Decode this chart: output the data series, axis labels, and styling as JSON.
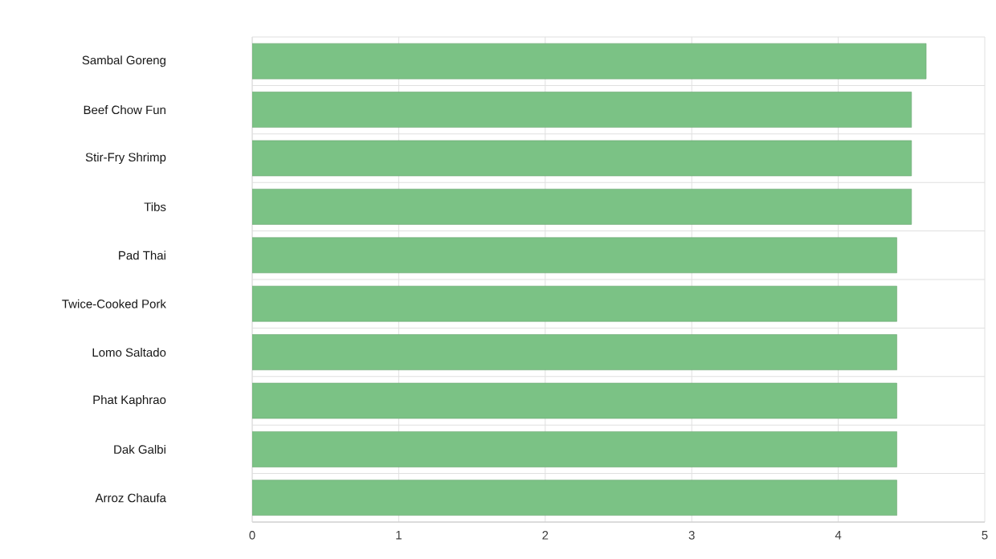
{
  "chart_data": {
    "type": "bar",
    "orientation": "horizontal",
    "categories": [
      "Sambal Goreng",
      "Beef Chow Fun",
      "Stir-Fry Shrimp",
      "Tibs",
      "Pad Thai",
      "Twice-Cooked Pork",
      "Lomo Saltado",
      "Phat Kaphrao",
      "Dak Galbi",
      "Arroz Chaufa"
    ],
    "values": [
      4.6,
      4.5,
      4.5,
      4.5,
      4.4,
      4.4,
      4.4,
      4.4,
      4.4,
      4.4
    ],
    "color": "#7bc285",
    "xlim": [
      0,
      5
    ],
    "xticks": [
      0,
      1,
      2,
      3,
      4,
      5
    ],
    "grid": true
  }
}
